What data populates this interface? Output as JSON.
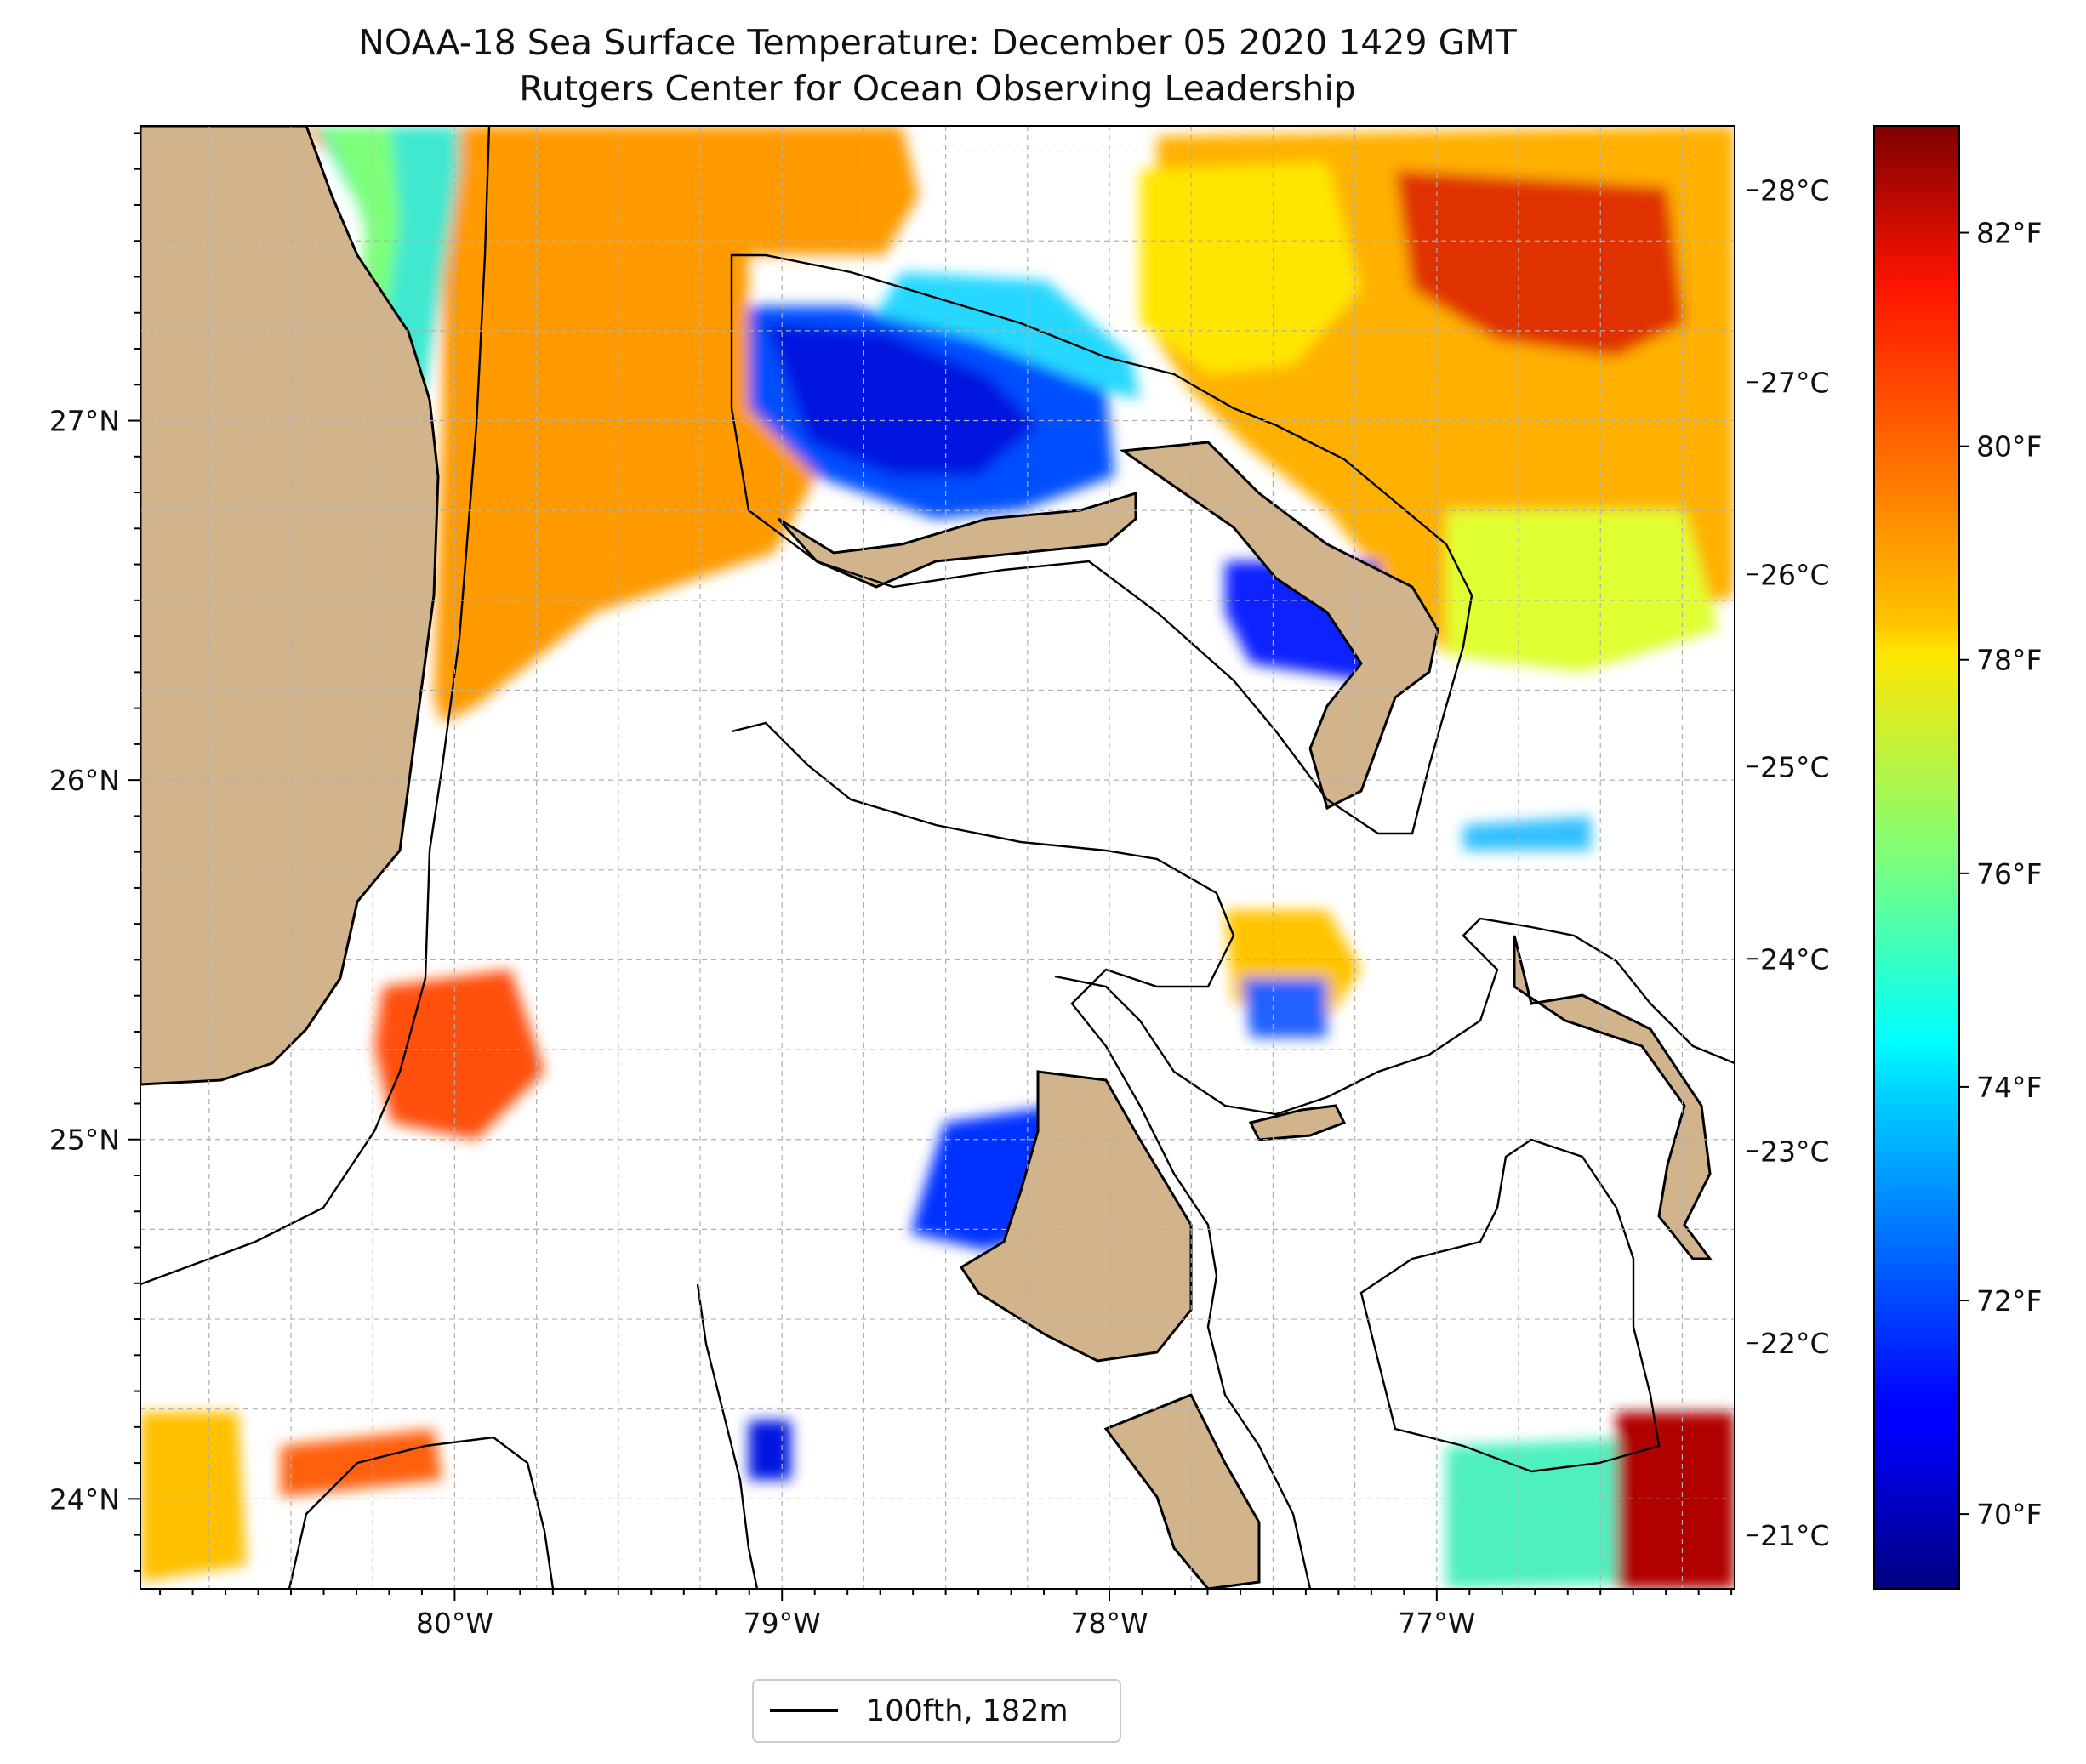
{
  "title": "NOAA-18 Sea Surface Temperature: December 05 2020 1429 GMT",
  "subtitle": "Rutgers Center for Ocean Observing Leadership",
  "map": {
    "lon_range": [
      -80.96,
      -76.09
    ],
    "lat_range": [
      23.75,
      27.82
    ],
    "lon_ticks": [
      {
        "value": -80,
        "label": "80°W"
      },
      {
        "value": -79,
        "label": "79°W"
      },
      {
        "value": -78,
        "label": "78°W"
      },
      {
        "value": -77,
        "label": "77°W"
      }
    ],
    "lat_ticks": [
      {
        "value": 27,
        "label": "27°N"
      },
      {
        "value": 26,
        "label": "26°N"
      },
      {
        "value": 25,
        "label": "25°N"
      },
      {
        "value": 24,
        "label": "24°N"
      }
    ],
    "grid": true,
    "colors": {
      "land": "#d2b48c",
      "coastline": "#000000",
      "background": "#ffffff",
      "grid": "#b0b0b0"
    }
  },
  "colorbar": {
    "colormap": "jet",
    "range_f": [
      69.3,
      83.0
    ],
    "celsius_ticks": [
      {
        "value": 28,
        "label": "28°C"
      },
      {
        "value": 27,
        "label": "27°C"
      },
      {
        "value": 26,
        "label": "26°C"
      },
      {
        "value": 25,
        "label": "25°C"
      },
      {
        "value": 24,
        "label": "24°C"
      },
      {
        "value": 23,
        "label": "23°C"
      },
      {
        "value": 22,
        "label": "22°C"
      },
      {
        "value": 21,
        "label": "21°C"
      }
    ],
    "fahrenheit_ticks": [
      {
        "value": 82,
        "label": "82°F"
      },
      {
        "value": 80,
        "label": "80°F"
      },
      {
        "value": 78,
        "label": "78°F"
      },
      {
        "value": 76,
        "label": "76°F"
      },
      {
        "value": 74,
        "label": "74°F"
      },
      {
        "value": 72,
        "label": "72°F"
      },
      {
        "value": 70,
        "label": "70°F"
      }
    ]
  },
  "legend": {
    "entries": [
      {
        "label": "100fth, 182m",
        "color": "#000000"
      }
    ],
    "placement": "bottom-center"
  }
}
